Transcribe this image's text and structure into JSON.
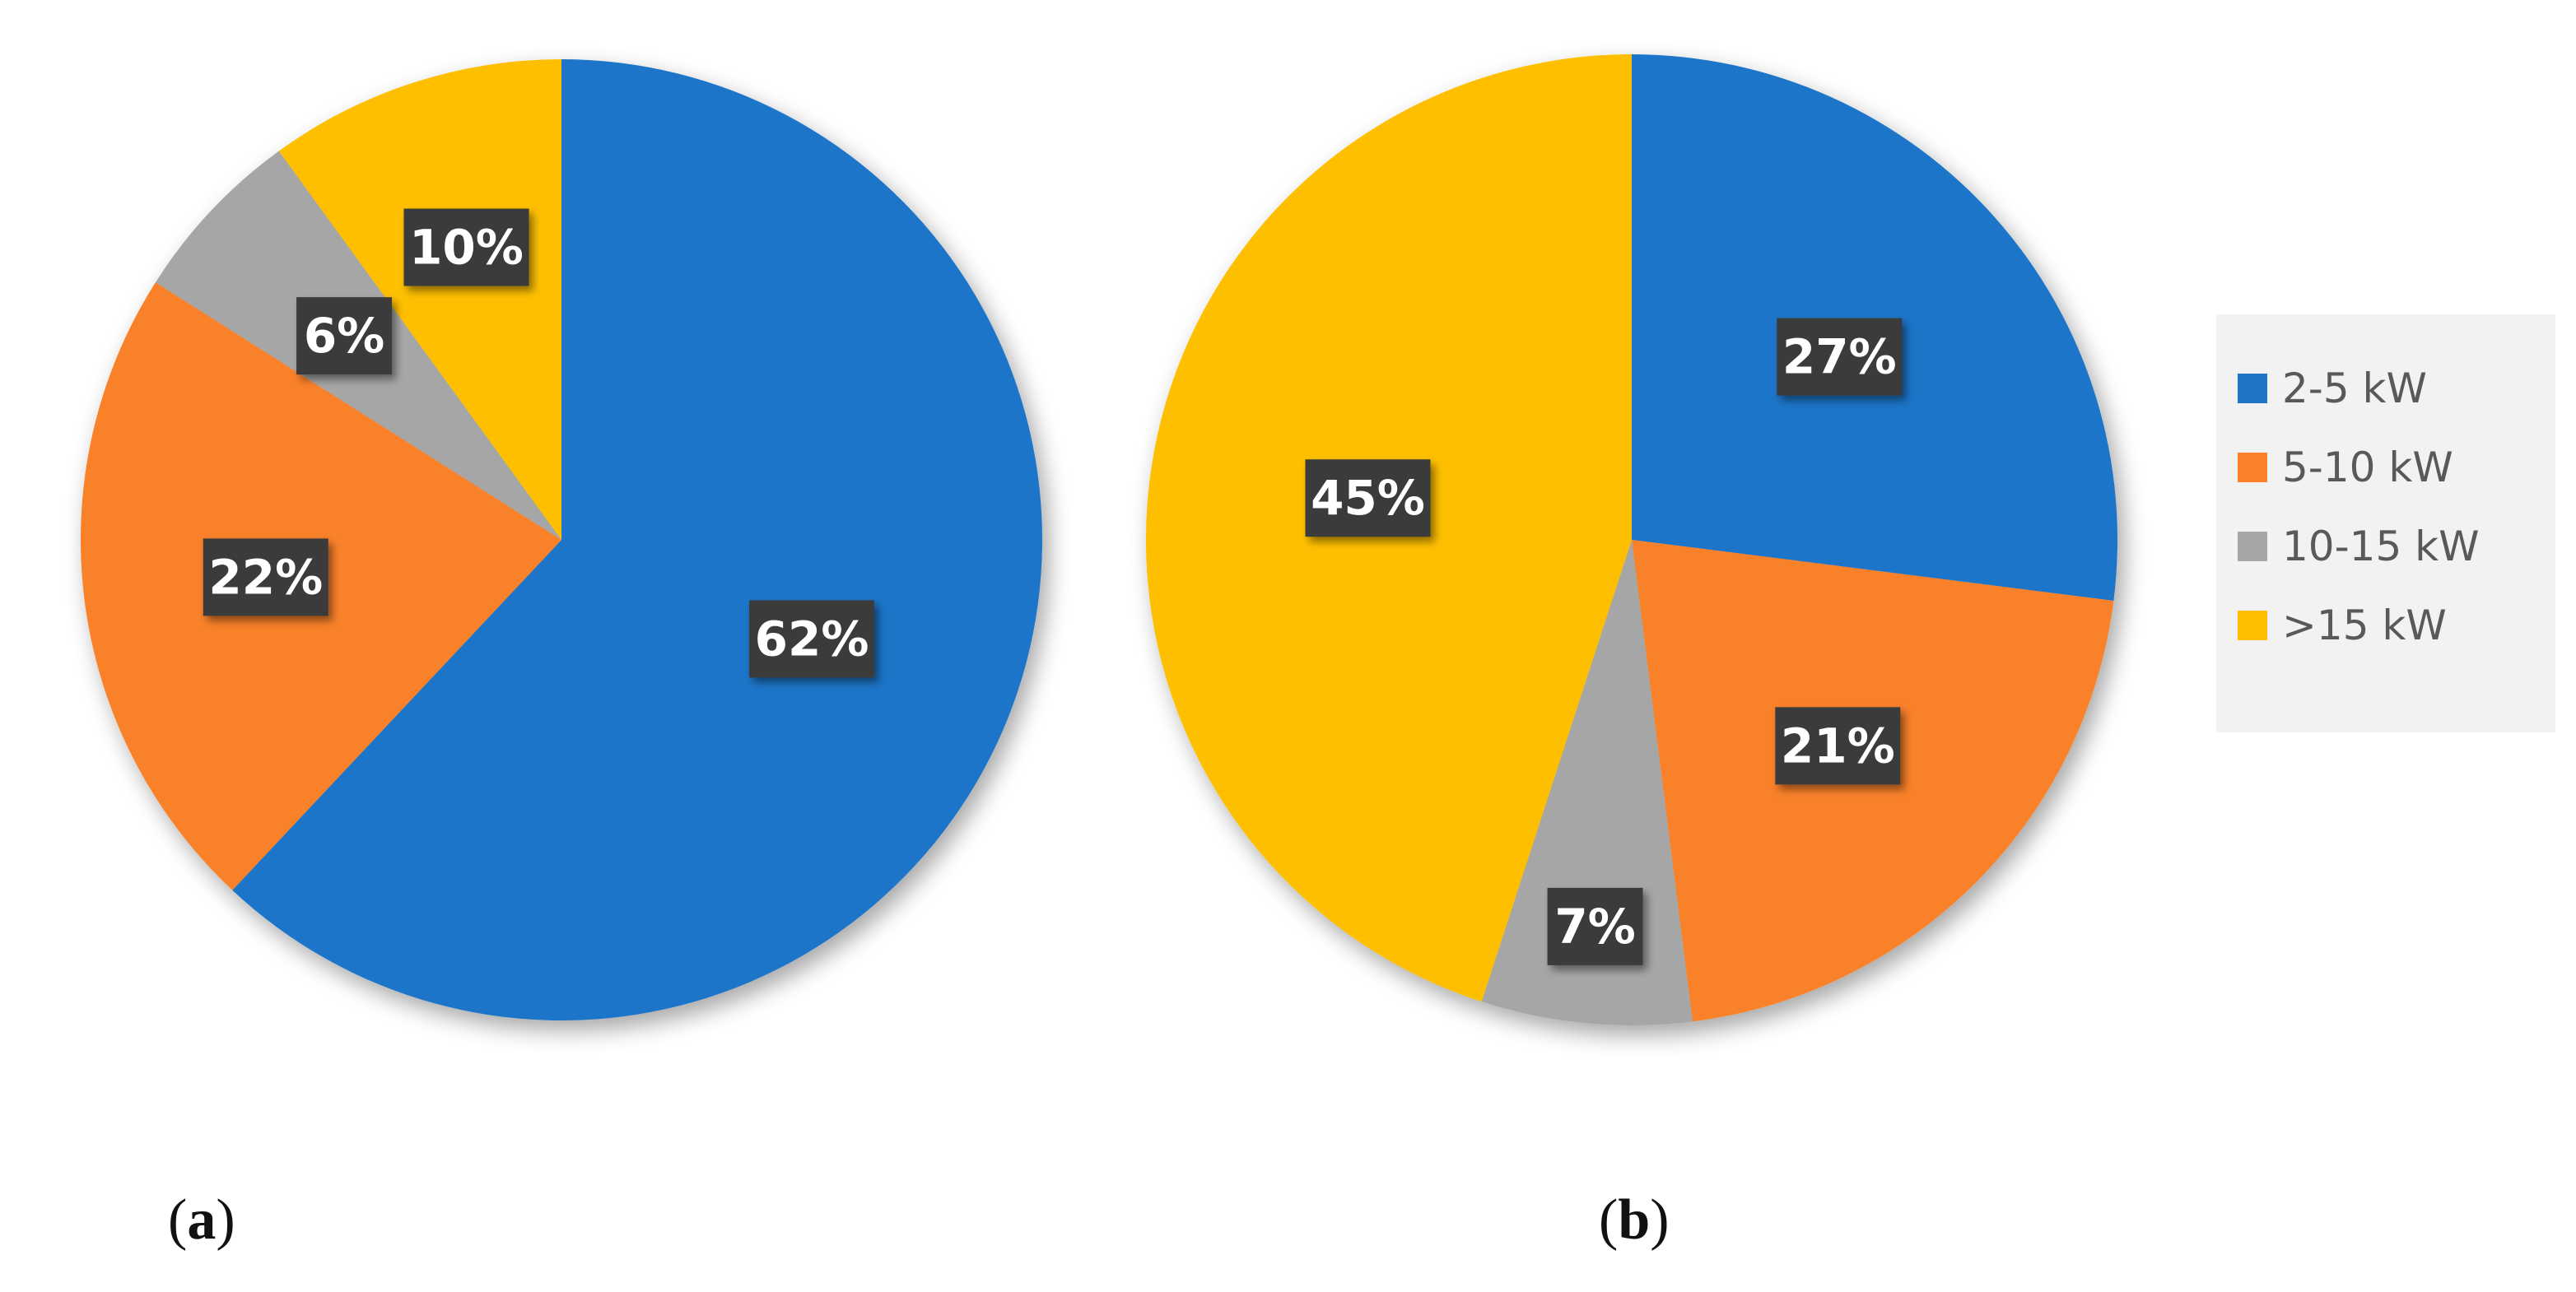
{
  "chart_data": [
    {
      "type": "pie",
      "panel": "(a)",
      "categories": [
        "2-5 kW",
        "5-10 kW",
        "10-15 kW",
        ">15 kW"
      ],
      "values": [
        62,
        22,
        6,
        10
      ],
      "labels": [
        "62%",
        "22%",
        "6%",
        "10%"
      ],
      "start": "12 o'clock",
      "direction": "clockwise"
    },
    {
      "type": "pie",
      "panel": "(b)",
      "categories": [
        "2-5 kW",
        "5-10 kW",
        "10-15 kW",
        ">15 kW"
      ],
      "values": [
        27,
        21,
        7,
        45
      ],
      "labels": [
        "27%",
        "21%",
        "7%",
        "45%"
      ],
      "start": "12 o'clock",
      "direction": "clockwise"
    }
  ],
  "legend": {
    "placement": "right",
    "items": [
      {
        "label": "2-5 kW",
        "color": "#1f74c8"
      },
      {
        "label": "5-10 kW",
        "color": "#f98129"
      },
      {
        "label": "10-15 kW",
        "color": "#a6a6a6"
      },
      {
        "label": ">15 kW",
        "color": "#fdbf00"
      }
    ]
  },
  "panel_labels": {
    "a": {
      "open": "(",
      "letter": "a",
      "close": ")"
    },
    "b": {
      "open": "(",
      "letter": "b",
      "close": ")"
    }
  }
}
